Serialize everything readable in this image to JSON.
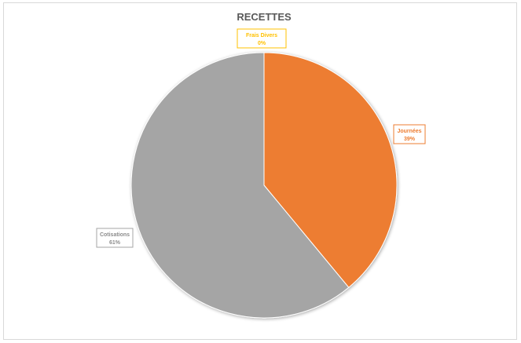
{
  "chart_data": {
    "type": "pie",
    "title": "RECETTES",
    "slices": [
      {
        "name": "Journées",
        "value": 39,
        "label_pct": "39%",
        "color": "#ED7D31"
      },
      {
        "name": "Cotisations",
        "value": 61,
        "label_pct": "61%",
        "color": "#A5A5A5"
      },
      {
        "name": "Frais Divers",
        "value": 0,
        "label_pct": "0%",
        "color": "#FFC000"
      }
    ]
  }
}
